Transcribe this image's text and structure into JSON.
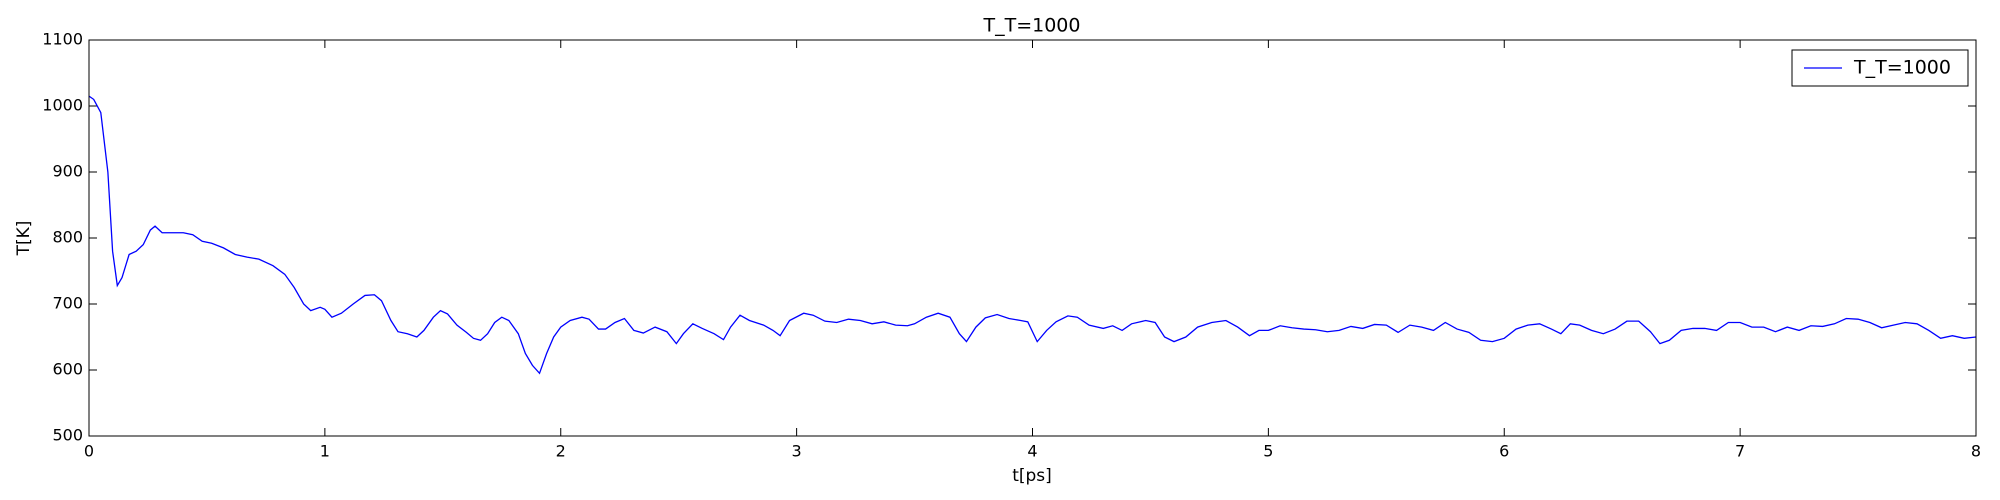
{
  "chart_data": {
    "type": "line",
    "title": "T_T=1000",
    "x_label": "t[ps]",
    "y_label": "T[K]",
    "x": [
      0,
      0.02,
      0.05,
      0.08,
      0.1,
      0.12,
      0.14,
      0.17,
      0.2,
      0.23,
      0.26,
      0.28,
      0.31,
      0.35,
      0.4,
      0.44,
      0.48,
      0.52,
      0.57,
      0.62,
      0.67,
      0.72,
      0.78,
      0.83,
      0.87,
      0.91,
      0.94,
      0.98,
      1.0,
      1.03,
      1.07,
      1.12,
      1.17,
      1.21,
      1.24,
      1.28,
      1.31,
      1.35,
      1.39,
      1.42,
      1.46,
      1.49,
      1.52,
      1.56,
      1.6,
      1.63,
      1.66,
      1.69,
      1.72,
      1.75,
      1.78,
      1.82,
      1.85,
      1.88,
      1.91,
      1.94,
      1.97,
      2.0,
      2.04,
      2.09,
      2.12,
      2.16,
      2.19,
      2.23,
      2.27,
      2.31,
      2.35,
      2.4,
      2.45,
      2.49,
      2.52,
      2.56,
      2.6,
      2.65,
      2.69,
      2.72,
      2.76,
      2.8,
      2.86,
      2.9,
      2.93,
      2.97,
      3.03,
      3.07,
      3.12,
      3.17,
      3.22,
      3.27,
      3.32,
      3.37,
      3.42,
      3.47,
      3.5,
      3.55,
      3.6,
      3.65,
      3.69,
      3.72,
      3.76,
      3.8,
      3.85,
      3.9,
      3.95,
      3.98,
      4.02,
      4.06,
      4.1,
      4.15,
      4.19,
      4.24,
      4.3,
      4.34,
      4.38,
      4.42,
      4.48,
      4.52,
      4.56,
      4.6,
      4.65,
      4.7,
      4.76,
      4.82,
      4.87,
      4.92,
      4.96,
      5.0,
      5.05,
      5.1,
      5.15,
      5.2,
      5.25,
      5.3,
      5.35,
      5.4,
      5.45,
      5.5,
      5.55,
      5.6,
      5.65,
      5.7,
      5.75,
      5.8,
      5.85,
      5.9,
      5.95,
      6.0,
      6.05,
      6.1,
      6.15,
      6.2,
      6.24,
      6.28,
      6.32,
      6.37,
      6.42,
      6.47,
      6.52,
      6.57,
      6.62,
      6.66,
      6.7,
      6.75,
      6.8,
      6.85,
      6.9,
      6.95,
      7.0,
      7.05,
      7.1,
      7.15,
      7.2,
      7.25,
      7.3,
      7.35,
      7.4,
      7.45,
      7.5,
      7.55,
      7.6,
      7.65,
      7.7,
      7.75,
      7.8,
      7.85,
      7.9,
      7.95,
      8.0
    ],
    "series": [
      {
        "name": "T_T=1000",
        "color": "#0000ff",
        "values": [
          1015,
          1010,
          990,
          900,
          780,
          728,
          740,
          775,
          780,
          790,
          812,
          818,
          808,
          808,
          808,
          805,
          795,
          792,
          785,
          775,
          771,
          768,
          758,
          745,
          725,
          700,
          690,
          695,
          692,
          680,
          686,
          700,
          713,
          714,
          705,
          675,
          658,
          655,
          650,
          660,
          680,
          690,
          685,
          668,
          657,
          648,
          645,
          655,
          672,
          680,
          675,
          655,
          625,
          607,
          595,
          625,
          650,
          665,
          675,
          680,
          677,
          662,
          662,
          672,
          678,
          660,
          656,
          665,
          658,
          640,
          655,
          670,
          663,
          655,
          646,
          665,
          683,
          675,
          668,
          660,
          652,
          675,
          686,
          683,
          674,
          672,
          677,
          675,
          670,
          673,
          668,
          667,
          670,
          680,
          686,
          680,
          655,
          643,
          665,
          679,
          684,
          678,
          675,
          673,
          643,
          660,
          673,
          682,
          680,
          668,
          663,
          667,
          660,
          670,
          675,
          672,
          650,
          643,
          650,
          665,
          672,
          675,
          665,
          652,
          660,
          660,
          667,
          664,
          662,
          661,
          658,
          660,
          666,
          663,
          669,
          668,
          657,
          668,
          665,
          660,
          672,
          662,
          657,
          645,
          643,
          648,
          662,
          668,
          670,
          662,
          655,
          670,
          668,
          660,
          655,
          662,
          674,
          674,
          658,
          640,
          645,
          660,
          663,
          663,
          660,
          672,
          672,
          665,
          665,
          658,
          665,
          660,
          667,
          666,
          670,
          678,
          677,
          672,
          664,
          668,
          672,
          670,
          660,
          648,
          652,
          648,
          650
        ]
      }
    ],
    "xlim": [
      0,
      8
    ],
    "xticks": [
      0,
      1,
      2,
      3,
      4,
      5,
      6,
      7,
      8
    ],
    "ylim": [
      500,
      1100
    ],
    "yticks": [
      500,
      600,
      700,
      800,
      900,
      1000,
      1100
    ],
    "legend": "upper right"
  }
}
